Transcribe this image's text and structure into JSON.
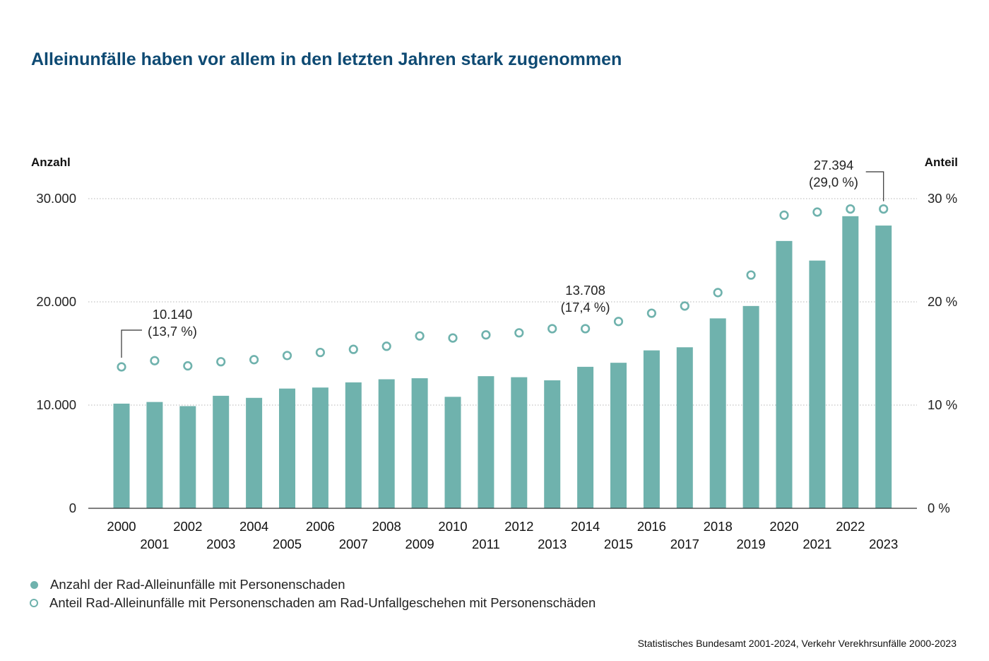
{
  "title": "Alleinunfälle haben vor allem in den letzten Jahren stark zugenommen",
  "colors": {
    "bar": "#6fb2ad",
    "title": "#0e4a73",
    "text": "#222222",
    "grid": "#bdbdbd"
  },
  "chart_data": {
    "type": "bar",
    "categories": [
      "2000",
      "2001",
      "2002",
      "2003",
      "2004",
      "2005",
      "2006",
      "2007",
      "2008",
      "2009",
      "2010",
      "2011",
      "2012",
      "2013",
      "2014",
      "2015",
      "2016",
      "2017",
      "2018",
      "2019",
      "2020",
      "2021",
      "2022",
      "2023"
    ],
    "series": [
      {
        "name": "Anzahl der Rad-Alleinunfälle mit Personenschaden",
        "type": "bar",
        "axis": "left",
        "values": [
          10140,
          10300,
          9900,
          10900,
          10700,
          11600,
          11700,
          12200,
          12500,
          12600,
          10800,
          12800,
          12700,
          12400,
          13708,
          14100,
          15300,
          15600,
          18400,
          19600,
          25900,
          24000,
          28300,
          27394
        ]
      },
      {
        "name": "Anteil Rad-Alleinunfälle mit Personenschaden am Rad-Unfallgeschehen mit Personenschäden",
        "type": "scatter",
        "axis": "right",
        "values": [
          13.7,
          14.3,
          13.8,
          14.2,
          14.4,
          14.8,
          15.1,
          15.4,
          15.7,
          16.7,
          16.5,
          16.8,
          17.0,
          17.4,
          17.4,
          18.1,
          18.9,
          19.6,
          20.9,
          22.6,
          28.4,
          28.7,
          29.0,
          29.0
        ]
      }
    ],
    "y_left": {
      "label": "Anzahl",
      "ylim": [
        0,
        30000
      ],
      "ticks": [
        0,
        10000,
        20000,
        30000
      ],
      "tick_labels": [
        "0",
        "10.000",
        "20.000",
        "30.000"
      ]
    },
    "y_right": {
      "label": "Anteil",
      "ylim": [
        0,
        30
      ],
      "ticks": [
        0,
        10,
        20,
        30
      ],
      "tick_labels": [
        "0 %",
        "10 %",
        "20 %",
        "30 %"
      ]
    },
    "grid": true,
    "legend_position": "bottom-left",
    "annotations": [
      {
        "index": 0,
        "lines": [
          "10.140",
          "(13,7 %)"
        ]
      },
      {
        "index": 14,
        "lines": [
          "13.708",
          "(17,4 %)"
        ]
      },
      {
        "index": 23,
        "lines": [
          "27.394",
          "(29,0 %)"
        ]
      }
    ]
  },
  "legend": {
    "bars": "Anzahl der Rad-Alleinunfälle mit Personenschaden",
    "dots": "Anteil Rad-Alleinunfälle mit Personenschaden am Rad-Unfallgeschehen mit Personenschäden"
  },
  "source": "Statistisches Bundesamt 2001-2024, Verkehr Verekhrsunfälle 2000-2023"
}
